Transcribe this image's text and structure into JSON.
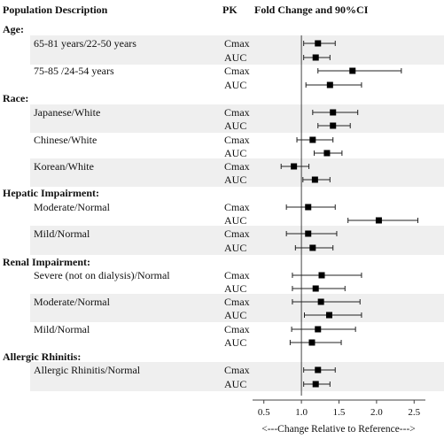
{
  "chart_data": {
    "type": "forest",
    "headers": {
      "description": "Population Description",
      "pk": "PK",
      "effect": "Fold Change and 90%CI"
    },
    "xlabel": "<---Change Relative to Reference--->",
    "xlim": [
      0.35,
      2.65
    ],
    "xticks": [
      0.5,
      1.0,
      1.5,
      2.0,
      2.5
    ],
    "xtick_labels": [
      "0.5",
      "1.0",
      "1.5",
      "2.0",
      "2.5"
    ],
    "reference_line": 1.0,
    "groups": [
      {
        "title": "Age:",
        "items": [
          {
            "label": "65-81 years/22-50  years",
            "rows": [
              {
                "pk": "Cmax",
                "est": 1.22,
                "lo": 1.03,
                "hi": 1.45
              },
              {
                "pk": "AUC",
                "est": 1.19,
                "lo": 1.03,
                "hi": 1.38
              }
            ]
          },
          {
            "label": "75-85 /24-54 years",
            "rows": [
              {
                "pk": "Cmax",
                "est": 1.68,
                "lo": 1.22,
                "hi": 2.33
              },
              {
                "pk": "AUC",
                "est": 1.38,
                "lo": 1.06,
                "hi": 1.8
              }
            ]
          }
        ]
      },
      {
        "title": "Race:",
        "items": [
          {
            "label": "Japanese/White",
            "rows": [
              {
                "pk": "Cmax",
                "est": 1.42,
                "lo": 1.15,
                "hi": 1.75
              },
              {
                "pk": "AUC",
                "est": 1.42,
                "lo": 1.22,
                "hi": 1.65
              }
            ]
          },
          {
            "label": "Chinese/White",
            "rows": [
              {
                "pk": "Cmax",
                "est": 1.15,
                "lo": 0.94,
                "hi": 1.42
              },
              {
                "pk": "AUC",
                "est": 1.34,
                "lo": 1.17,
                "hi": 1.54
              }
            ]
          },
          {
            "label": "Korean/White",
            "rows": [
              {
                "pk": "Cmax",
                "est": 0.9,
                "lo": 0.73,
                "hi": 1.1
              },
              {
                "pk": "AUC",
                "est": 1.18,
                "lo": 1.02,
                "hi": 1.38
              }
            ]
          }
        ]
      },
      {
        "title": "Hepatic Impairment:",
        "items": [
          {
            "label": "Moderate/Normal",
            "rows": [
              {
                "pk": "Cmax",
                "est": 1.09,
                "lo": 0.8,
                "hi": 1.45
              },
              {
                "pk": "AUC",
                "est": 2.03,
                "lo": 1.62,
                "hi": 2.55
              }
            ]
          },
          {
            "label": "Mild/Normal",
            "rows": [
              {
                "pk": "Cmax",
                "est": 1.09,
                "lo": 0.8,
                "hi": 1.47
              },
              {
                "pk": "AUC",
                "est": 1.15,
                "lo": 0.92,
                "hi": 1.42
              }
            ]
          }
        ]
      },
      {
        "title": "Renal Impairment:",
        "items": [
          {
            "label": "Severe (not on dialysis)/Normal",
            "rows": [
              {
                "pk": "Cmax",
                "est": 1.27,
                "lo": 0.88,
                "hi": 1.8
              },
              {
                "pk": "AUC",
                "est": 1.19,
                "lo": 0.88,
                "hi": 1.58
              }
            ]
          },
          {
            "label": "Moderate/Normal",
            "rows": [
              {
                "pk": "Cmax",
                "est": 1.26,
                "lo": 0.88,
                "hi": 1.78
              },
              {
                "pk": "AUC",
                "est": 1.37,
                "lo": 1.04,
                "hi": 1.8
              }
            ]
          },
          {
            "label": "Mild/Normal",
            "rows": [
              {
                "pk": "Cmax",
                "est": 1.22,
                "lo": 0.87,
                "hi": 1.72
              },
              {
                "pk": "AUC",
                "est": 1.14,
                "lo": 0.85,
                "hi": 1.53
              }
            ]
          }
        ]
      },
      {
        "title": "Allergic Rhinitis:",
        "items": [
          {
            "label": "Allergic Rhinitis/Normal",
            "rows": [
              {
                "pk": "Cmax",
                "est": 1.22,
                "lo": 1.03,
                "hi": 1.45
              },
              {
                "pk": "AUC",
                "est": 1.19,
                "lo": 1.03,
                "hi": 1.38
              }
            ]
          }
        ]
      }
    ],
    "colors": {
      "band": "#efefef",
      "marker": "#000000",
      "line": "#222222"
    }
  }
}
